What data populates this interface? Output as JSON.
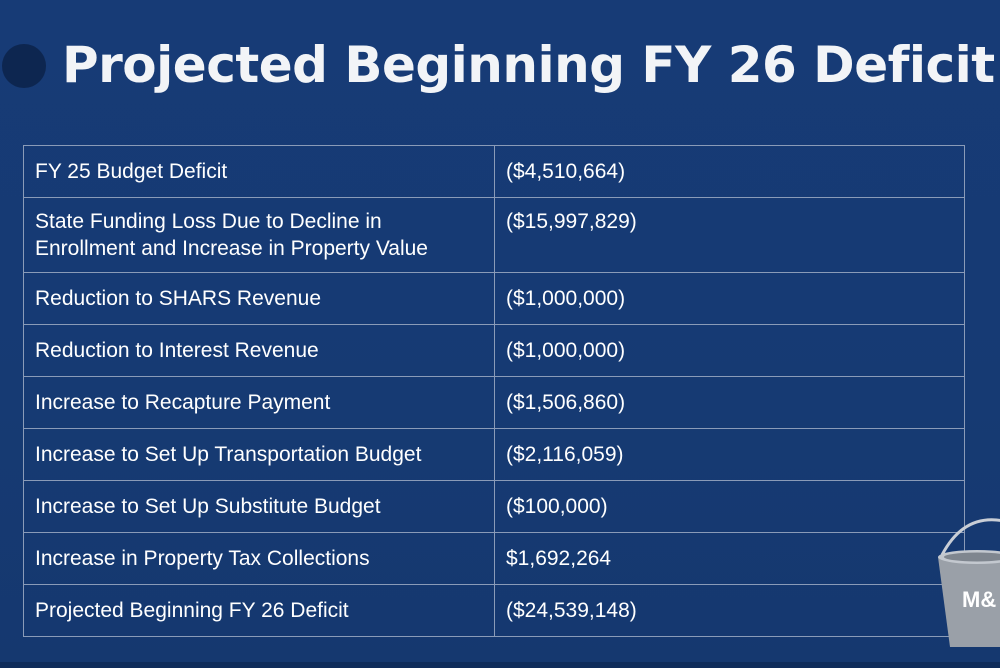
{
  "slide": {
    "title": "Projected Beginning FY 26 Deficit"
  },
  "table": {
    "rows": [
      {
        "label": "FY 25 Budget Deficit",
        "value": "($4,510,664)"
      },
      {
        "label": "State Funding Loss Due to Decline in Enrollment and Increase in Property Value",
        "value": "($15,997,829)"
      },
      {
        "label": "Reduction to SHARS Revenue",
        "value": "($1,000,000)"
      },
      {
        "label": "Reduction to Interest Revenue",
        "value": "($1,000,000)"
      },
      {
        "label": "Increase to Recapture Payment",
        "value": "($1,506,860)"
      },
      {
        "label": "Increase to Set Up Transportation Budget",
        "value": "($2,116,059)"
      },
      {
        "label": "Increase to Set Up Substitute Budget",
        "value": "($100,000)"
      },
      {
        "label": "Increase in Property Tax Collections",
        "value": "$1,692,264"
      },
      {
        "label": "Projected Beginning FY 26 Deficit",
        "value": "($24,539,148)"
      }
    ]
  },
  "logo": {
    "text": "M&",
    "icon": "bucket-icon"
  },
  "colors": {
    "background": "#163a74",
    "title": "#f2f4f7",
    "grid": "#8a9bb8",
    "text": "#ffffff"
  }
}
